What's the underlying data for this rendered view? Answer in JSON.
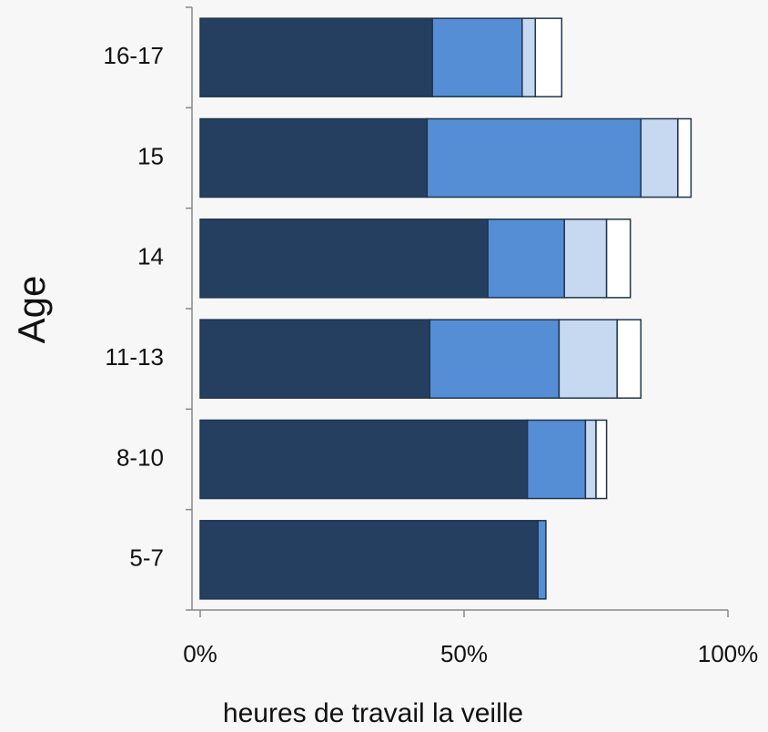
{
  "chart_data": {
    "type": "stacked-barh",
    "xlabel": "heures de travail la veille",
    "ylabel": "Age",
    "categories": [
      "16-17",
      "15",
      "14",
      "11-13",
      "8-10",
      "5-7"
    ],
    "series": [
      {
        "color": "#253f60",
        "values": [
          44,
          43,
          54.5,
          43.5,
          62,
          64
        ]
      },
      {
        "color": "#558ed5",
        "values": [
          17,
          40.5,
          14.5,
          24.5,
          11,
          1.5
        ]
      },
      {
        "color": "#c6d9f1",
        "values": [
          2.5,
          7,
          8,
          11,
          2,
          0
        ]
      },
      {
        "color": "#ffffff",
        "values": [
          5,
          2.5,
          4.5,
          4.5,
          2,
          0
        ]
      }
    ],
    "xlim": [
      0,
      100
    ],
    "xticks": [
      {
        "value": 0,
        "label": "0%"
      },
      {
        "value": 50,
        "label": "50%"
      },
      {
        "value": 100,
        "label": "100%"
      }
    ]
  }
}
